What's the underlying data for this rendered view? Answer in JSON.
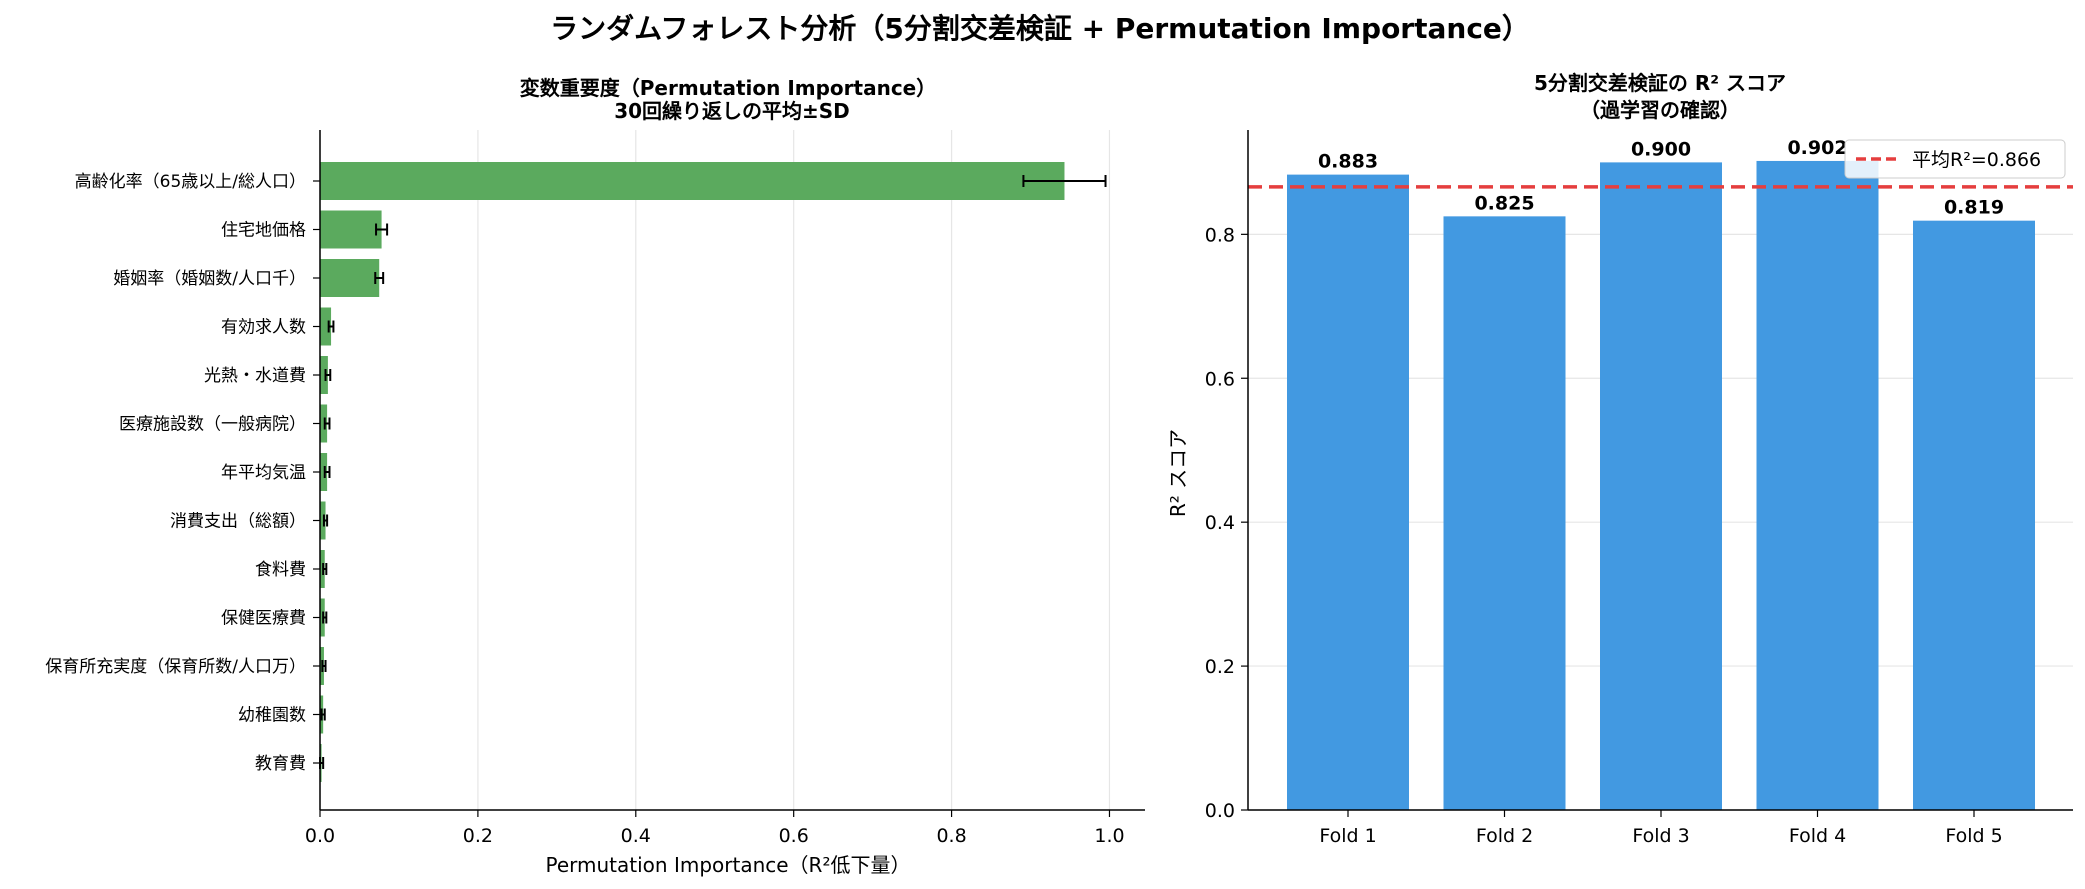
{
  "figure": {
    "suptitle": "ランダムフォレスト分析（5分割交差検証 + Permutation Importance）"
  },
  "chart_data": [
    {
      "type": "bar",
      "orientation": "horizontal",
      "title_line1": "変数重要度（Permutation Importance）",
      "title_line2": "30回繰り返しの平均±SD",
      "xlabel": "Permutation Importance（R²低下量）",
      "ylabel": "",
      "xlim": [
        0,
        1.045
      ],
      "xticks": [
        0.0,
        0.2,
        0.4,
        0.6,
        0.8,
        1.0
      ],
      "xtick_labels": [
        "0.0",
        "0.2",
        "0.4",
        "0.6",
        "0.8",
        "1.0"
      ],
      "grid": "x",
      "bar_color": "#5BAA5E",
      "categories": [
        "高齢化率（65歳以上/総人口）",
        "住宅地価格",
        "婚姻率（婚姻数/人口千）",
        "有効求人数",
        "光熱・水道費",
        "医療施設数（一般病院）",
        "年平均気温",
        "消費支出（総額）",
        "食料費",
        "保健医療費",
        "保育所充実度（保育所数/人口万）",
        "幼稚園数",
        "教育費"
      ],
      "values": [
        0.943,
        0.078,
        0.075,
        0.014,
        0.01,
        0.009,
        0.009,
        0.007,
        0.006,
        0.006,
        0.005,
        0.004,
        0.002
      ],
      "errors": [
        0.052,
        0.007,
        0.005,
        0.003,
        0.003,
        0.003,
        0.003,
        0.002,
        0.002,
        0.002,
        0.002,
        0.002,
        0.002
      ]
    },
    {
      "type": "bar",
      "title_line1": "5分割交差検証の R² スコア",
      "title_line2": "（過学習の確認）",
      "xlabel": "",
      "ylabel": "R² スコア",
      "ylim": [
        0,
        0.945
      ],
      "yticks": [
        0.0,
        0.2,
        0.4,
        0.6,
        0.8
      ],
      "ytick_labels": [
        "0.0",
        "0.2",
        "0.4",
        "0.6",
        "0.8"
      ],
      "grid": "y",
      "bar_color": "#4299E1",
      "categories": [
        "Fold 1",
        "Fold 2",
        "Fold 3",
        "Fold 4",
        "Fold 5"
      ],
      "values": [
        0.883,
        0.825,
        0.9,
        0.902,
        0.819
      ],
      "value_labels": [
        "0.883",
        "0.825",
        "0.900",
        "0.902",
        "0.819"
      ],
      "mean": 0.866,
      "mean_color": "#E53E3E",
      "legend_label": "平均R²=0.866",
      "legend_position": "upper right"
    }
  ]
}
